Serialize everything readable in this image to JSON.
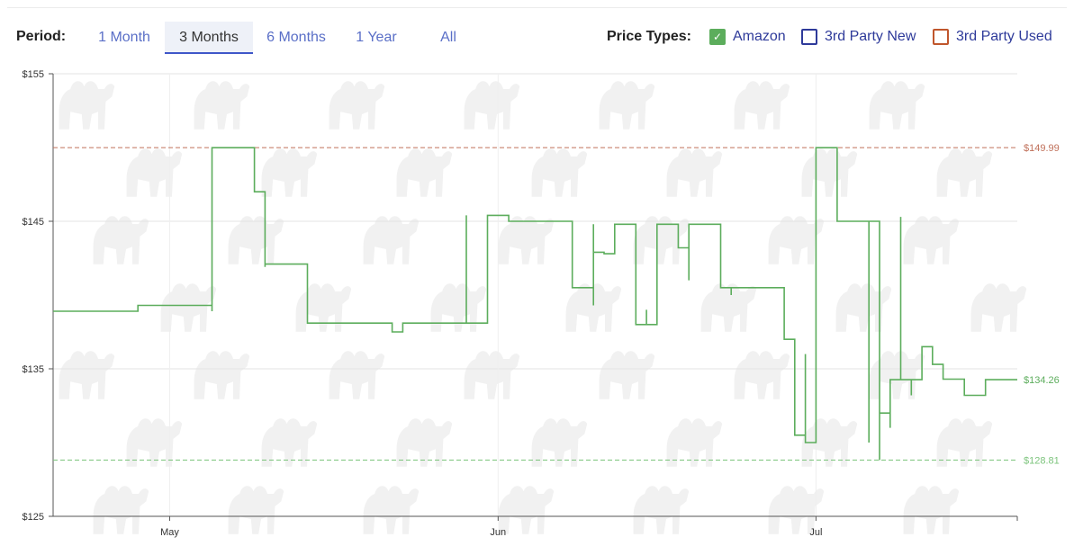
{
  "controls": {
    "period_label": "Period:",
    "periods": [
      "1 Month",
      "3 Months",
      "6 Months",
      "1 Year",
      "All"
    ],
    "active_period": "3 Months",
    "price_types_label": "Price Types:",
    "price_types": [
      {
        "label": "Amazon",
        "checked": true,
        "color": "#5cad5c"
      },
      {
        "label": "3rd Party New",
        "checked": false,
        "color": "#2e3a9a"
      },
      {
        "label": "3rd Party Used",
        "checked": false,
        "color": "#c0562c"
      }
    ]
  },
  "chart_data": {
    "type": "line",
    "title": "",
    "xlabel": "",
    "ylabel": "",
    "grid": true,
    "x_range": [
      "2024-04-20",
      "2024-07-20"
    ],
    "ylim": [
      125,
      155
    ],
    "y_ticks": [
      125,
      135,
      145,
      155
    ],
    "y_tick_labels": [
      "$125",
      "$135",
      "$145",
      "$155"
    ],
    "x_ticks": [
      "2024-05-01",
      "2024-06-01",
      "2024-07-01"
    ],
    "x_tick_labels": [
      "May",
      "Jun",
      "Jul"
    ],
    "reference_lines": [
      {
        "value": 149.99,
        "label": "$149.99",
        "color": "#c0705a"
      },
      {
        "value": 128.81,
        "label": "$128.81",
        "color": "#7cc47c"
      }
    ],
    "current_value_label": {
      "value": 134.26,
      "label": "$134.26"
    },
    "series": [
      {
        "color": "#5cad5c",
        "step": true,
        "points": [
          [
            "2024-04-20",
            138.9
          ],
          [
            "2024-04-28",
            139.3
          ],
          [
            "2024-05-05",
            138.9
          ],
          [
            "2024-05-05",
            149.99
          ],
          [
            "2024-05-09",
            149.0
          ],
          [
            "2024-05-09",
            149.99
          ],
          [
            "2024-05-09",
            147.0
          ],
          [
            "2024-05-10",
            141.9
          ],
          [
            "2024-05-10",
            142.1
          ],
          [
            "2024-05-14",
            138.1
          ],
          [
            "2024-05-22",
            137.5
          ],
          [
            "2024-05-23",
            138.1
          ],
          [
            "2024-05-29",
            145.4
          ],
          [
            "2024-05-29",
            138.1
          ],
          [
            "2024-05-29",
            145.4
          ],
          [
            "2024-05-29",
            138.1
          ],
          [
            "2024-05-31",
            145.4
          ],
          [
            "2024-06-02",
            145.0
          ],
          [
            "2024-06-08",
            144.8
          ],
          [
            "2024-06-08",
            141.5
          ],
          [
            "2024-06-08",
            140.5
          ],
          [
            "2024-06-10",
            139.3
          ],
          [
            "2024-06-10",
            144.8
          ],
          [
            "2024-06-10",
            142.9
          ],
          [
            "2024-06-11",
            142.8
          ],
          [
            "2024-06-12",
            144.8
          ],
          [
            "2024-06-14",
            139.0
          ],
          [
            "2024-06-14",
            138.0
          ],
          [
            "2024-06-15",
            139.0
          ],
          [
            "2024-06-15",
            138.0
          ],
          [
            "2024-06-16",
            144.8
          ],
          [
            "2024-06-18",
            143.6
          ],
          [
            "2024-06-18",
            143.2
          ],
          [
            "2024-06-19",
            144.8
          ],
          [
            "2024-06-19",
            141.0
          ],
          [
            "2024-06-19",
            144.8
          ],
          [
            "2024-06-22",
            140.5
          ],
          [
            "2024-06-23",
            140.0
          ],
          [
            "2024-06-23",
            140.5
          ],
          [
            "2024-06-28",
            137.5
          ],
          [
            "2024-06-28",
            137.0
          ],
          [
            "2024-06-29",
            136.0
          ],
          [
            "2024-06-29",
            135.5
          ],
          [
            "2024-06-29",
            130.5
          ],
          [
            "2024-06-30",
            136.0
          ],
          [
            "2024-06-30",
            130.0
          ],
          [
            "2024-07-01",
            149.99
          ],
          [
            "2024-07-03",
            145.0
          ],
          [
            "2024-07-06",
            130.0
          ],
          [
            "2024-07-06",
            145.0
          ],
          [
            "2024-07-07",
            128.81
          ],
          [
            "2024-07-07",
            132.0
          ],
          [
            "2024-07-08",
            131.0
          ],
          [
            "2024-07-08",
            134.26
          ],
          [
            "2024-07-09",
            145.3
          ],
          [
            "2024-07-09",
            134.26
          ],
          [
            "2024-07-10",
            133.2
          ],
          [
            "2024-07-10",
            134.26
          ],
          [
            "2024-07-11",
            136.5
          ],
          [
            "2024-07-12",
            135.3
          ],
          [
            "2024-07-13",
            134.3
          ],
          [
            "2024-07-15",
            133.2
          ],
          [
            "2024-07-17",
            134.26
          ]
        ]
      }
    ]
  }
}
